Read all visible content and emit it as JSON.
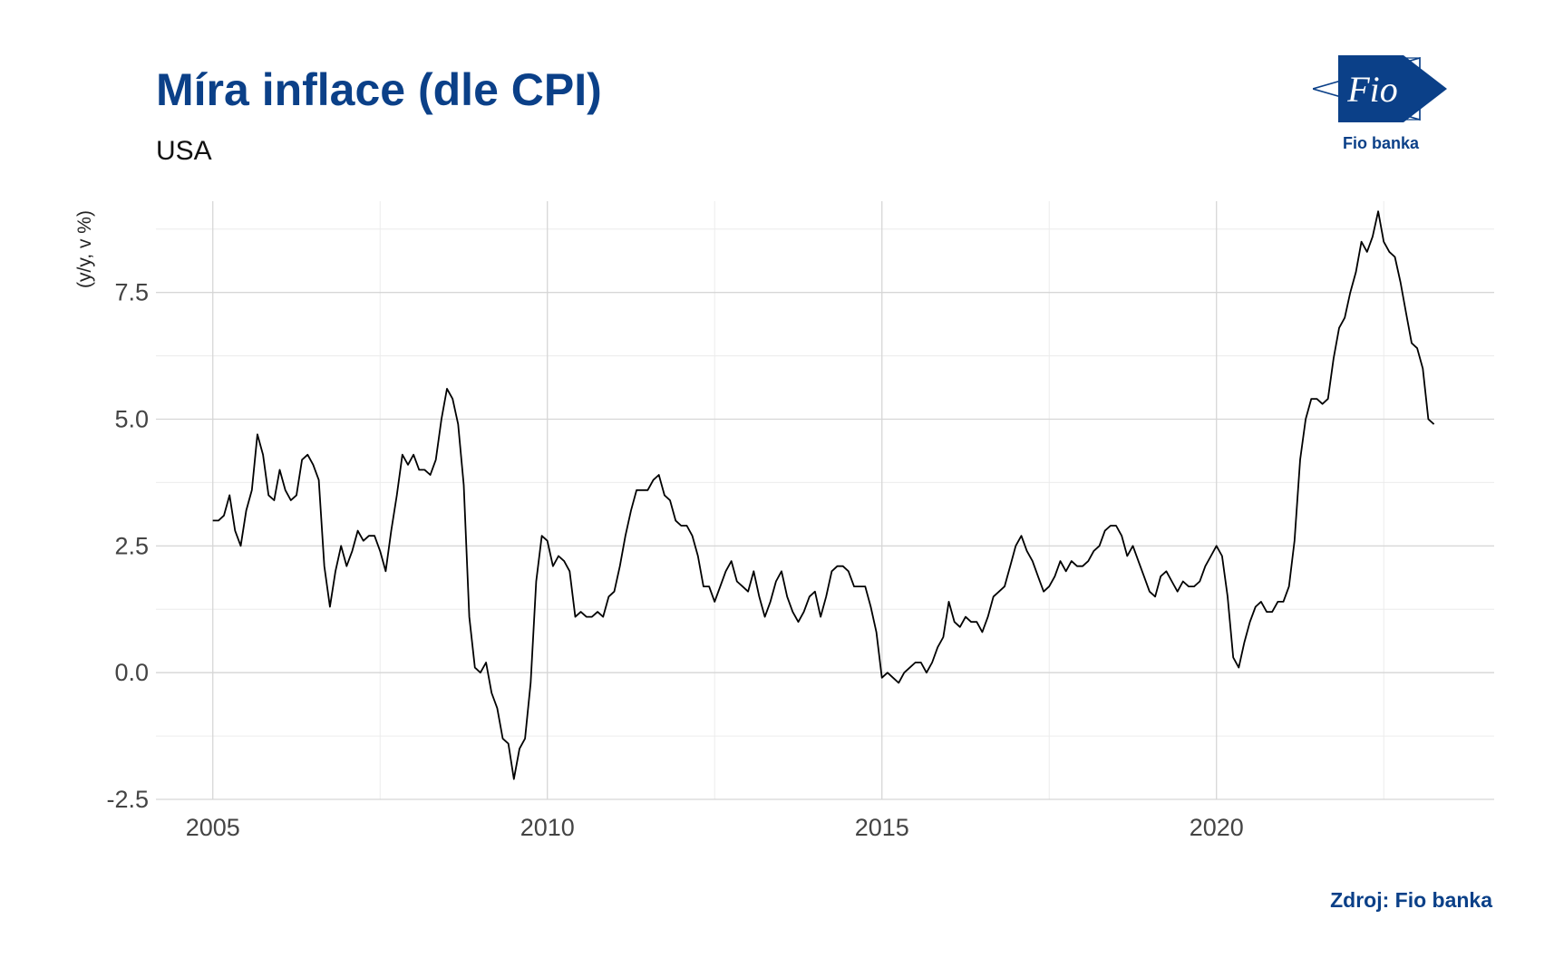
{
  "header": {
    "title": "Míra inflace (dle CPI)",
    "subtitle": "USA"
  },
  "logo": {
    "mark_text": "Fio",
    "caption": "Fio banka",
    "color": "#0b4088"
  },
  "footer": {
    "source": "Zdroj: Fio banka"
  },
  "chart_data": {
    "type": "line",
    "ylabel": "(y/y, v %)",
    "xlabel": "",
    "xlim": [
      2004.15,
      2024.15
    ],
    "ylim": [
      -2.5,
      9.3
    ],
    "x_ticks": [
      2005,
      2010,
      2015,
      2020
    ],
    "x_tick_labels": [
      "2005",
      "2010",
      "2015",
      "2020"
    ],
    "x_minor_ticks": [
      2007.5,
      2012.5,
      2017.5,
      2022.5
    ],
    "y_ticks": [
      -2.5,
      0,
      2.5,
      5,
      7.5
    ],
    "y_tick_labels": [
      "-2.5",
      "0.0",
      "2.5",
      "5.0",
      "7.5"
    ],
    "y_minor_ticks": [
      -1.25,
      1.25,
      3.75,
      6.25,
      8.75
    ],
    "grid": true,
    "line_color": "#000000",
    "start_year": 2005,
    "start_month": 1,
    "series": [
      {
        "values": [
          3.0,
          3.0,
          3.1,
          3.5,
          2.8,
          2.5,
          3.2,
          3.6,
          4.7,
          4.3,
          3.5,
          3.4,
          4.0,
          3.6,
          3.4,
          3.5,
          4.2,
          4.3,
          4.1,
          3.8,
          2.1,
          1.3,
          2.0,
          2.5,
          2.1,
          2.4,
          2.8,
          2.6,
          2.7,
          2.7,
          2.4,
          2.0,
          2.8,
          3.5,
          4.3,
          4.1,
          4.3,
          4.0,
          4.0,
          3.9,
          4.2,
          5.0,
          5.6,
          5.4,
          4.9,
          3.7,
          1.1,
          0.1,
          0.0,
          0.2,
          -0.4,
          -0.7,
          -1.3,
          -1.4,
          -2.1,
          -1.5,
          -1.3,
          -0.2,
          1.8,
          2.7,
          2.6,
          2.1,
          2.3,
          2.2,
          2.0,
          1.1,
          1.2,
          1.1,
          1.1,
          1.2,
          1.1,
          1.5,
          1.6,
          2.1,
          2.7,
          3.2,
          3.6,
          3.6,
          3.6,
          3.8,
          3.9,
          3.5,
          3.4,
          3.0,
          2.9,
          2.9,
          2.7,
          2.3,
          1.7,
          1.7,
          1.4,
          1.7,
          2.0,
          2.2,
          1.8,
          1.7,
          1.6,
          2.0,
          1.5,
          1.1,
          1.4,
          1.8,
          2.0,
          1.5,
          1.2,
          1.0,
          1.2,
          1.5,
          1.6,
          1.1,
          1.5,
          2.0,
          2.1,
          2.1,
          2.0,
          1.7,
          1.7,
          1.7,
          1.3,
          0.8,
          -0.1,
          0.0,
          -0.1,
          -0.2,
          0.0,
          0.1,
          0.2,
          0.2,
          0.0,
          0.2,
          0.5,
          0.7,
          1.4,
          1.0,
          0.9,
          1.1,
          1.0,
          1.0,
          0.8,
          1.1,
          1.5,
          1.6,
          1.7,
          2.1,
          2.5,
          2.7,
          2.4,
          2.2,
          1.9,
          1.6,
          1.7,
          1.9,
          2.2,
          2.0,
          2.2,
          2.1,
          2.1,
          2.2,
          2.4,
          2.5,
          2.8,
          2.9,
          2.9,
          2.7,
          2.3,
          2.5,
          2.2,
          1.9,
          1.6,
          1.5,
          1.9,
          2.0,
          1.8,
          1.6,
          1.8,
          1.7,
          1.7,
          1.8,
          2.1,
          2.3,
          2.5,
          2.3,
          1.5,
          0.3,
          0.1,
          0.6,
          1.0,
          1.3,
          1.4,
          1.2,
          1.2,
          1.4,
          1.4,
          1.7,
          2.6,
          4.2,
          5.0,
          5.4,
          5.4,
          5.3,
          5.4,
          6.2,
          6.8,
          7.0,
          7.5,
          7.9,
          8.5,
          8.3,
          8.6,
          9.1,
          8.5,
          8.3,
          8.2,
          7.7,
          7.1,
          6.5,
          6.4,
          6.0,
          5.0,
          4.9
        ]
      }
    ]
  }
}
